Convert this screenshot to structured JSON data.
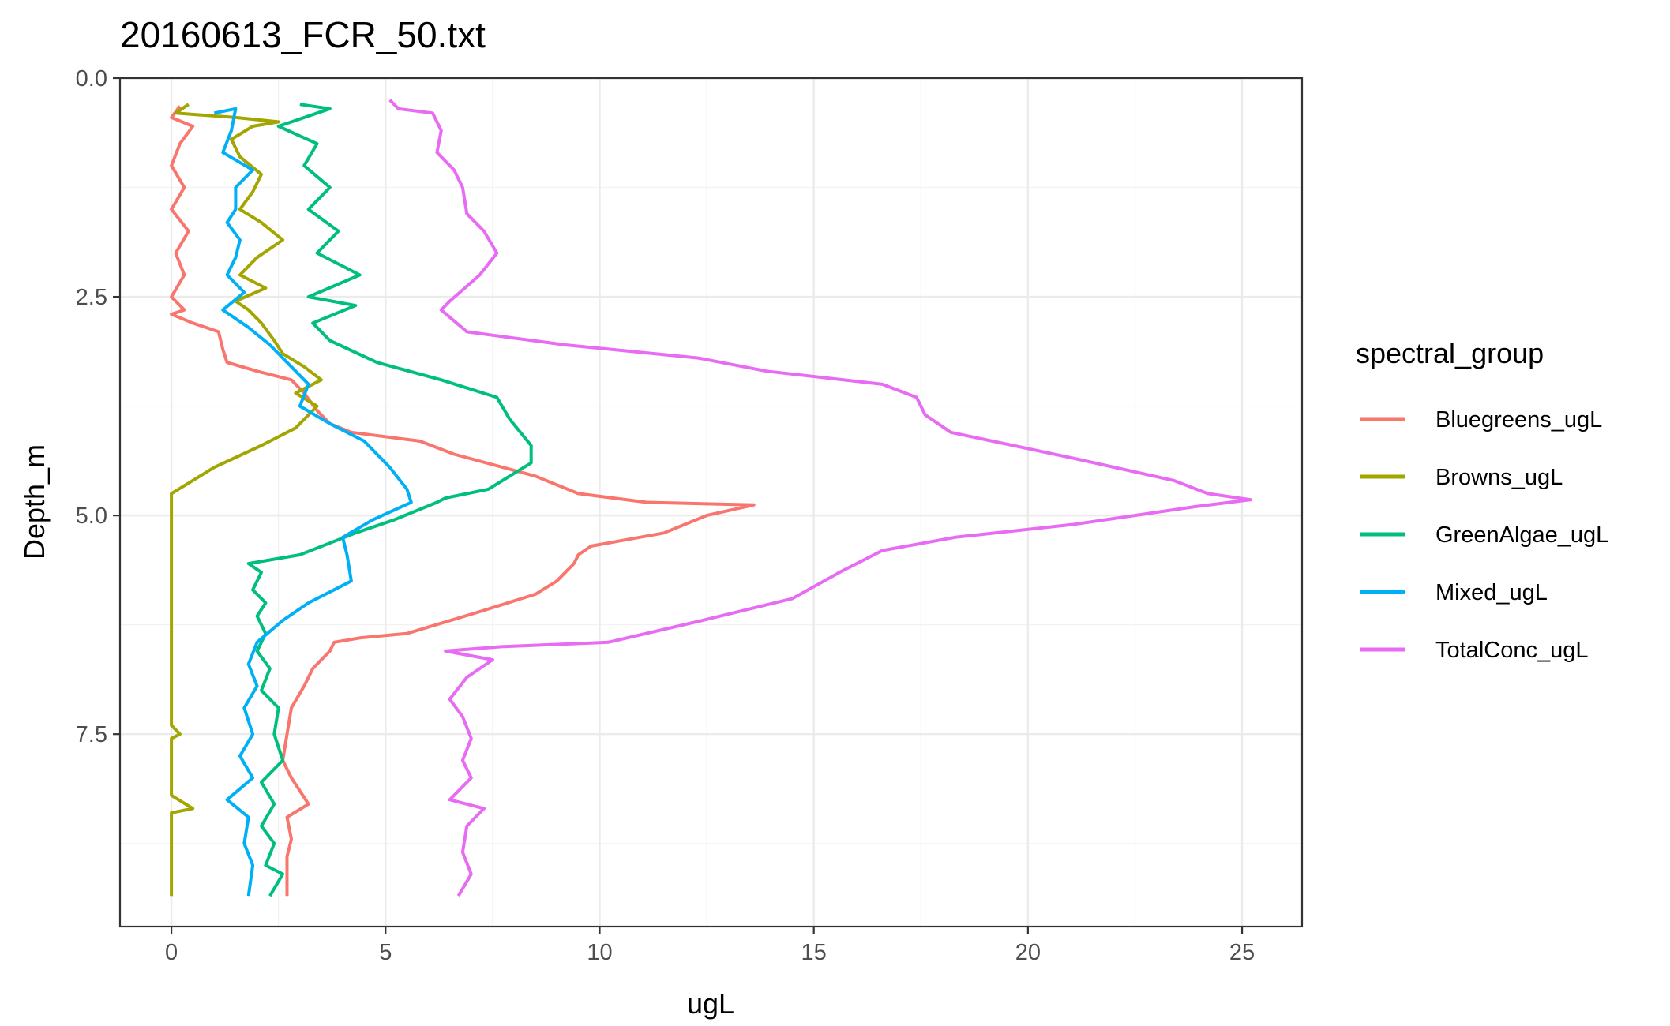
{
  "chart_data": {
    "type": "line",
    "title": "20160613_FCR_50.txt",
    "xlabel": "ugL",
    "ylabel": "Depth_m",
    "xlim": [
      -1.2,
      26.4
    ],
    "ylim": [
      0.0,
      9.7
    ],
    "y_reversed": true,
    "x_ticks": [
      0,
      5,
      10,
      15,
      20,
      25
    ],
    "x_tick_labels": [
      "0",
      "5",
      "10",
      "15",
      "20",
      "25"
    ],
    "y_ticks": [
      0.0,
      2.5,
      5.0,
      7.5
    ],
    "y_tick_labels": [
      "0.0",
      "2.5",
      "5.0",
      "7.5"
    ],
    "grid": true,
    "legend": {
      "title": "spectral_group",
      "position": "right"
    },
    "series": [
      {
        "name": "Bluegreens_ugL",
        "color": "#F8766D",
        "points": [
          [
            0.2,
            0.32
          ],
          [
            0.0,
            0.45
          ],
          [
            0.5,
            0.55
          ],
          [
            0.2,
            0.75
          ],
          [
            0.0,
            1.0
          ],
          [
            0.3,
            1.25
          ],
          [
            0.0,
            1.5
          ],
          [
            0.4,
            1.75
          ],
          [
            0.1,
            2.0
          ],
          [
            0.3,
            2.25
          ],
          [
            0.0,
            2.5
          ],
          [
            0.3,
            2.65
          ],
          [
            0.0,
            2.7
          ],
          [
            0.5,
            2.8
          ],
          [
            1.1,
            2.9
          ],
          [
            1.2,
            3.1
          ],
          [
            1.3,
            3.25
          ],
          [
            2.0,
            3.35
          ],
          [
            2.8,
            3.45
          ],
          [
            3.1,
            3.6
          ],
          [
            3.4,
            3.8
          ],
          [
            3.7,
            3.95
          ],
          [
            4.2,
            4.05
          ],
          [
            5.8,
            4.15
          ],
          [
            6.6,
            4.3
          ],
          [
            8.5,
            4.55
          ],
          [
            9.5,
            4.75
          ],
          [
            11.1,
            4.85
          ],
          [
            13.6,
            4.88
          ],
          [
            12.5,
            5.0
          ],
          [
            11.5,
            5.2
          ],
          [
            9.8,
            5.35
          ],
          [
            9.5,
            5.45
          ],
          [
            9.4,
            5.55
          ],
          [
            9.0,
            5.75
          ],
          [
            8.5,
            5.9
          ],
          [
            7.2,
            6.1
          ],
          [
            5.5,
            6.35
          ],
          [
            4.4,
            6.4
          ],
          [
            3.8,
            6.45
          ],
          [
            3.7,
            6.55
          ],
          [
            3.3,
            6.75
          ],
          [
            3.1,
            6.95
          ],
          [
            2.8,
            7.2
          ],
          [
            2.7,
            7.5
          ],
          [
            2.6,
            7.8
          ],
          [
            2.8,
            8.0
          ],
          [
            3.2,
            8.3
          ],
          [
            2.7,
            8.45
          ],
          [
            2.8,
            8.7
          ],
          [
            2.7,
            8.9
          ],
          [
            2.7,
            9.35
          ]
        ]
      },
      {
        "name": "Browns_ugL",
        "color": "#A3A500",
        "points": [
          [
            0.4,
            0.3
          ],
          [
            0.1,
            0.4
          ],
          [
            1.5,
            0.45
          ],
          [
            2.5,
            0.5
          ],
          [
            1.9,
            0.55
          ],
          [
            1.4,
            0.7
          ],
          [
            1.6,
            0.9
          ],
          [
            2.1,
            1.1
          ],
          [
            1.9,
            1.3
          ],
          [
            1.6,
            1.5
          ],
          [
            2.1,
            1.65
          ],
          [
            2.6,
            1.85
          ],
          [
            2.0,
            2.05
          ],
          [
            1.6,
            2.25
          ],
          [
            2.2,
            2.4
          ],
          [
            1.5,
            2.55
          ],
          [
            1.8,
            2.65
          ],
          [
            2.1,
            2.8
          ],
          [
            2.4,
            3.0
          ],
          [
            2.6,
            3.15
          ],
          [
            3.1,
            3.3
          ],
          [
            3.5,
            3.45
          ],
          [
            2.9,
            3.6
          ],
          [
            3.4,
            3.75
          ],
          [
            2.9,
            4.0
          ],
          [
            2.1,
            4.2
          ],
          [
            1.0,
            4.45
          ],
          [
            0.5,
            4.6
          ],
          [
            0.0,
            4.75
          ],
          [
            0.0,
            5.5
          ],
          [
            0.0,
            6.5
          ],
          [
            0.0,
            7.4
          ],
          [
            0.2,
            7.5
          ],
          [
            0.0,
            7.55
          ],
          [
            0.0,
            8.2
          ],
          [
            0.5,
            8.35
          ],
          [
            0.0,
            8.4
          ],
          [
            0.0,
            9.35
          ]
        ]
      },
      {
        "name": "GreenAlgae_ugL",
        "color": "#00BF7D",
        "points": [
          [
            3.0,
            0.3
          ],
          [
            3.7,
            0.35
          ],
          [
            2.5,
            0.55
          ],
          [
            3.4,
            0.75
          ],
          [
            3.1,
            1.0
          ],
          [
            3.7,
            1.25
          ],
          [
            3.2,
            1.5
          ],
          [
            3.9,
            1.75
          ],
          [
            3.4,
            2.0
          ],
          [
            4.4,
            2.25
          ],
          [
            3.2,
            2.5
          ],
          [
            4.3,
            2.6
          ],
          [
            3.3,
            2.8
          ],
          [
            3.7,
            3.0
          ],
          [
            4.8,
            3.25
          ],
          [
            6.3,
            3.45
          ],
          [
            7.6,
            3.65
          ],
          [
            7.9,
            3.9
          ],
          [
            8.4,
            4.2
          ],
          [
            8.4,
            4.4
          ],
          [
            7.4,
            4.7
          ],
          [
            6.4,
            4.8
          ],
          [
            6.2,
            4.85
          ],
          [
            5.2,
            5.05
          ],
          [
            4.3,
            5.2
          ],
          [
            3.0,
            5.45
          ],
          [
            1.8,
            5.55
          ],
          [
            2.1,
            5.65
          ],
          [
            1.9,
            5.85
          ],
          [
            2.2,
            6.0
          ],
          [
            2.0,
            6.15
          ],
          [
            2.2,
            6.35
          ],
          [
            2.0,
            6.55
          ],
          [
            2.3,
            6.75
          ],
          [
            2.1,
            7.0
          ],
          [
            2.5,
            7.2
          ],
          [
            2.4,
            7.5
          ],
          [
            2.6,
            7.8
          ],
          [
            2.1,
            8.05
          ],
          [
            2.4,
            8.3
          ],
          [
            2.1,
            8.55
          ],
          [
            2.4,
            8.75
          ],
          [
            2.2,
            9.0
          ],
          [
            2.6,
            9.1
          ],
          [
            2.3,
            9.35
          ]
        ]
      },
      {
        "name": "Mixed_ugL",
        "color": "#00B0F6",
        "points": [
          [
            1.0,
            0.4
          ],
          [
            1.5,
            0.35
          ],
          [
            1.4,
            0.6
          ],
          [
            1.2,
            0.85
          ],
          [
            1.9,
            1.05
          ],
          [
            1.5,
            1.25
          ],
          [
            1.5,
            1.5
          ],
          [
            1.3,
            1.65
          ],
          [
            1.6,
            1.85
          ],
          [
            1.5,
            2.05
          ],
          [
            1.3,
            2.25
          ],
          [
            1.7,
            2.45
          ],
          [
            1.2,
            2.65
          ],
          [
            1.8,
            2.85
          ],
          [
            2.3,
            3.05
          ],
          [
            2.7,
            3.25
          ],
          [
            3.2,
            3.5
          ],
          [
            3.0,
            3.75
          ],
          [
            3.7,
            3.95
          ],
          [
            4.5,
            4.15
          ],
          [
            5.1,
            4.45
          ],
          [
            5.5,
            4.7
          ],
          [
            5.6,
            4.85
          ],
          [
            4.7,
            5.05
          ],
          [
            4.0,
            5.25
          ],
          [
            4.1,
            5.45
          ],
          [
            4.2,
            5.75
          ],
          [
            3.2,
            6.0
          ],
          [
            2.6,
            6.2
          ],
          [
            2.0,
            6.45
          ],
          [
            1.8,
            6.7
          ],
          [
            2.0,
            6.95
          ],
          [
            1.7,
            7.2
          ],
          [
            1.9,
            7.5
          ],
          [
            1.6,
            7.75
          ],
          [
            1.9,
            8.0
          ],
          [
            1.3,
            8.25
          ],
          [
            1.8,
            8.45
          ],
          [
            1.7,
            8.75
          ],
          [
            1.9,
            9.0
          ],
          [
            1.8,
            9.35
          ]
        ]
      },
      {
        "name": "TotalConc_ugL",
        "color": "#E76BF3",
        "points": [
          [
            5.1,
            0.25
          ],
          [
            5.3,
            0.35
          ],
          [
            6.1,
            0.4
          ],
          [
            6.3,
            0.6
          ],
          [
            6.2,
            0.85
          ],
          [
            6.6,
            1.05
          ],
          [
            6.8,
            1.25
          ],
          [
            6.9,
            1.55
          ],
          [
            7.3,
            1.75
          ],
          [
            7.6,
            2.0
          ],
          [
            7.2,
            2.25
          ],
          [
            6.5,
            2.55
          ],
          [
            6.3,
            2.65
          ],
          [
            6.9,
            2.9
          ],
          [
            9.2,
            3.05
          ],
          [
            12.3,
            3.2
          ],
          [
            13.9,
            3.35
          ],
          [
            16.6,
            3.5
          ],
          [
            17.4,
            3.65
          ],
          [
            17.6,
            3.85
          ],
          [
            18.2,
            4.05
          ],
          [
            21.1,
            4.35
          ],
          [
            23.4,
            4.6
          ],
          [
            24.2,
            4.75
          ],
          [
            25.2,
            4.82
          ],
          [
            23.9,
            4.9
          ],
          [
            21.1,
            5.1
          ],
          [
            18.3,
            5.25
          ],
          [
            16.6,
            5.4
          ],
          [
            15.6,
            5.65
          ],
          [
            14.5,
            5.95
          ],
          [
            12.4,
            6.2
          ],
          [
            10.2,
            6.45
          ],
          [
            7.7,
            6.5
          ],
          [
            6.4,
            6.55
          ],
          [
            7.5,
            6.65
          ],
          [
            6.9,
            6.85
          ],
          [
            6.5,
            7.1
          ],
          [
            6.8,
            7.3
          ],
          [
            7.0,
            7.55
          ],
          [
            6.8,
            7.8
          ],
          [
            7.0,
            8.0
          ],
          [
            6.5,
            8.25
          ],
          [
            7.3,
            8.35
          ],
          [
            6.9,
            8.55
          ],
          [
            6.8,
            8.85
          ],
          [
            7.0,
            9.1
          ],
          [
            6.7,
            9.35
          ]
        ]
      }
    ]
  }
}
